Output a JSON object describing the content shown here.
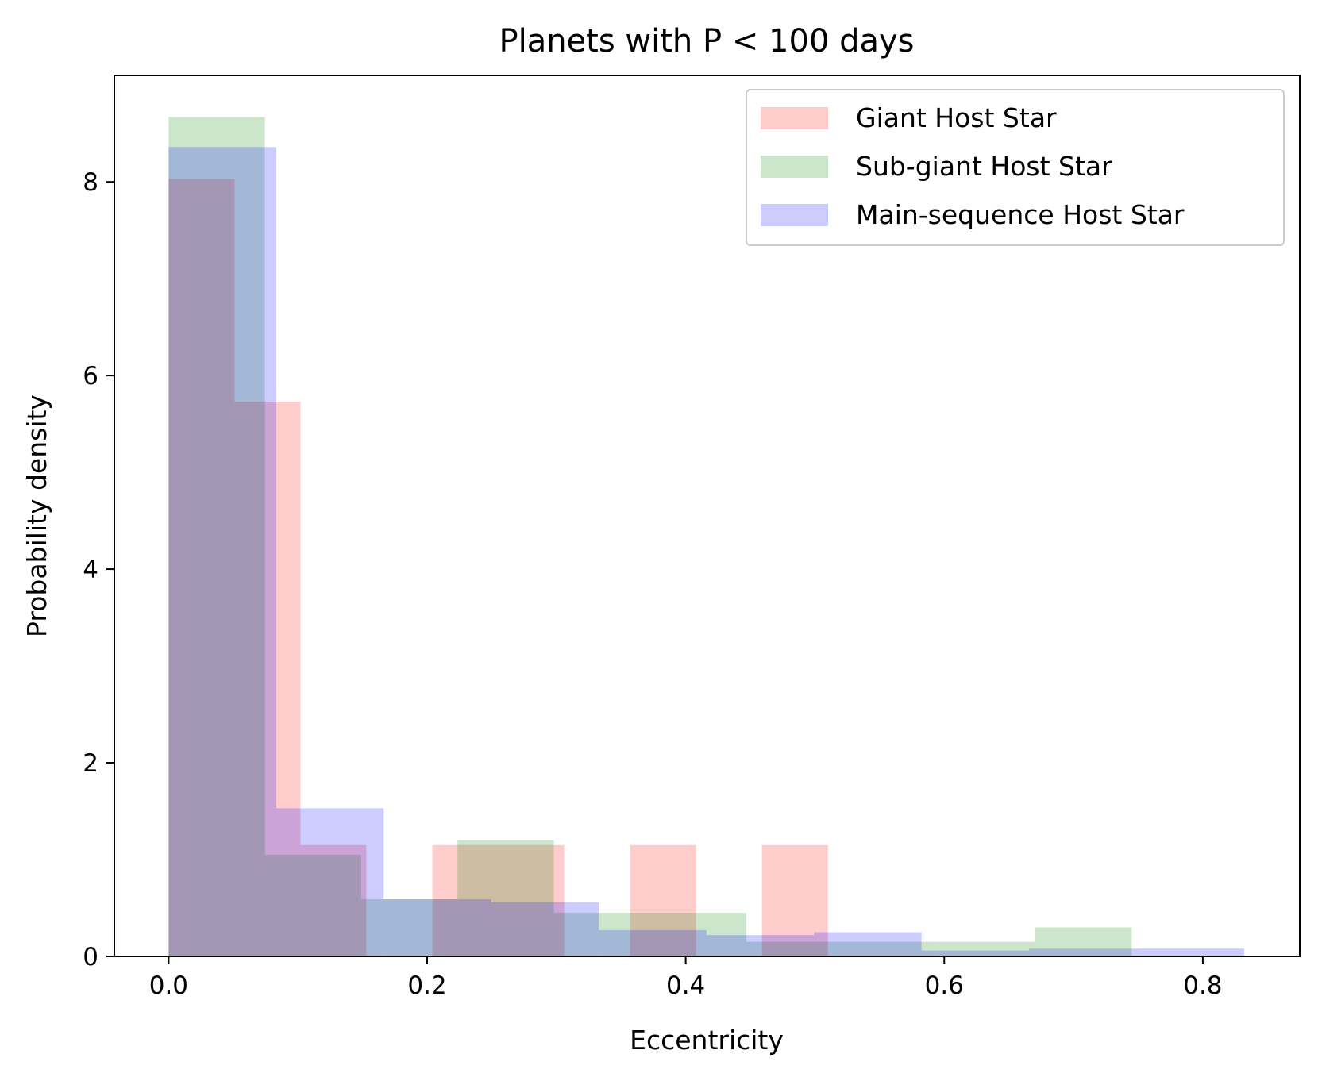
{
  "chart_data": {
    "type": "bar",
    "title": "Planets with P < 100 days",
    "xlabel": "Eccentricity",
    "ylabel": "Probability density",
    "xlim": [
      -0.042,
      0.875
    ],
    "ylim": [
      0,
      9.1
    ],
    "xticks": [
      0.0,
      0.2,
      0.4,
      0.6,
      0.8
    ],
    "xtick_labels": [
      "0.0",
      "0.2",
      "0.4",
      "0.6",
      "0.8"
    ],
    "yticks": [
      0,
      2,
      4,
      6,
      8
    ],
    "ytick_labels": [
      "0",
      "2",
      "4",
      "6",
      "8"
    ],
    "grid": false,
    "legend": "top-right",
    "series": [
      {
        "name": "Giant Host Star",
        "color": "#ff0000",
        "alpha": 0.2,
        "bin_edges": [
          0.0,
          0.051,
          0.102,
          0.153,
          0.204,
          0.255,
          0.306,
          0.357,
          0.408,
          0.459,
          0.51
        ],
        "values": [
          8.03,
          5.73,
          1.15,
          0.0,
          1.15,
          1.15,
          0.0,
          1.15,
          0.0,
          1.15
        ]
      },
      {
        "name": "Sub-giant Host Star",
        "color": "#008000",
        "alpha": 0.2,
        "bin_edges": [
          0.0,
          0.0745,
          0.149,
          0.2235,
          0.298,
          0.3725,
          0.447,
          0.5215,
          0.596,
          0.6705,
          0.745
        ],
        "values": [
          8.67,
          1.05,
          0.59,
          1.2,
          0.45,
          0.45,
          0.15,
          0.15,
          0.15,
          0.3
        ]
      },
      {
        "name": "Main-sequence Host Star",
        "color": "#0000ff",
        "alpha": 0.2,
        "bin_edges": [
          0.0,
          0.0832,
          0.1664,
          0.2496,
          0.3328,
          0.416,
          0.4992,
          0.5824,
          0.6656,
          0.7488,
          0.832
        ],
        "values": [
          8.36,
          1.53,
          0.59,
          0.56,
          0.27,
          0.22,
          0.25,
          0.06,
          0.08,
          0.08
        ]
      }
    ]
  }
}
